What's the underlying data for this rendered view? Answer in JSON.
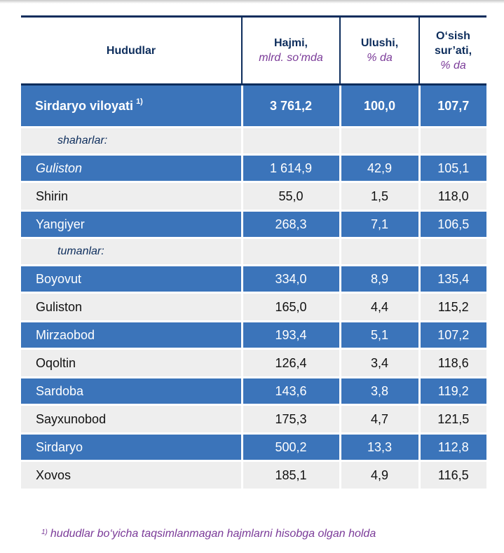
{
  "headers": {
    "region": "Hududlar",
    "volume": "Hajmi,",
    "volume_unit": "mlrd. so‘mda",
    "share": "Ulushi,",
    "share_unit": "% da",
    "growth_line1": "O‘sish",
    "growth_line2": "sur’ati,",
    "growth_unit": "% da"
  },
  "total": {
    "name": "Sirdaryo viloyati",
    "footnote_mark": "1)",
    "volume": "3 761,2",
    "share": "100,0",
    "growth": "107,7"
  },
  "groups": [
    {
      "label": "shaharlar:",
      "rows": [
        {
          "name": "Guliston",
          "volume": "1 614,9",
          "share": "42,9",
          "growth": "105,1",
          "style": "blue",
          "italic": true
        },
        {
          "name": "Shirin",
          "volume": "55,0",
          "share": "1,5",
          "growth": "118,0",
          "style": "white"
        },
        {
          "name": "Yangiyer",
          "volume": "268,3",
          "share": "7,1",
          "growth": "106,5",
          "style": "blue"
        }
      ]
    },
    {
      "label": "tumanlar:",
      "rows": [
        {
          "name": "Boyovut",
          "volume": "334,0",
          "share": "8,9",
          "growth": "135,4",
          "style": "blue"
        },
        {
          "name": "Guliston",
          "volume": "165,0",
          "share": "4,4",
          "growth": "115,2",
          "style": "white"
        },
        {
          "name": "Mirzaobod",
          "volume": "193,4",
          "share": "5,1",
          "growth": "107,2",
          "style": "blue"
        },
        {
          "name": "Oqoltin",
          "volume": "126,4",
          "share": "3,4",
          "growth": "118,6",
          "style": "white"
        },
        {
          "name": "Sardoba",
          "volume": "143,6",
          "share": "3,8",
          "growth": "119,2",
          "style": "blue"
        },
        {
          "name": "Sayxunobod",
          "volume": "175,3",
          "share": "4,7",
          "growth": "121,5",
          "style": "white"
        },
        {
          "name": "Sirdaryo",
          "volume": "500,2",
          "share": "13,3",
          "growth": "112,8",
          "style": "blue"
        },
        {
          "name": "Xovos",
          "volume": "185,1",
          "share": "4,9",
          "growth": "116,5",
          "style": "white"
        }
      ]
    }
  ],
  "footnote": {
    "mark": "1)",
    "text": "hududlar  bo‘yicha taqsimlanmagan hajmlarni hisobga olgan holda"
  }
}
